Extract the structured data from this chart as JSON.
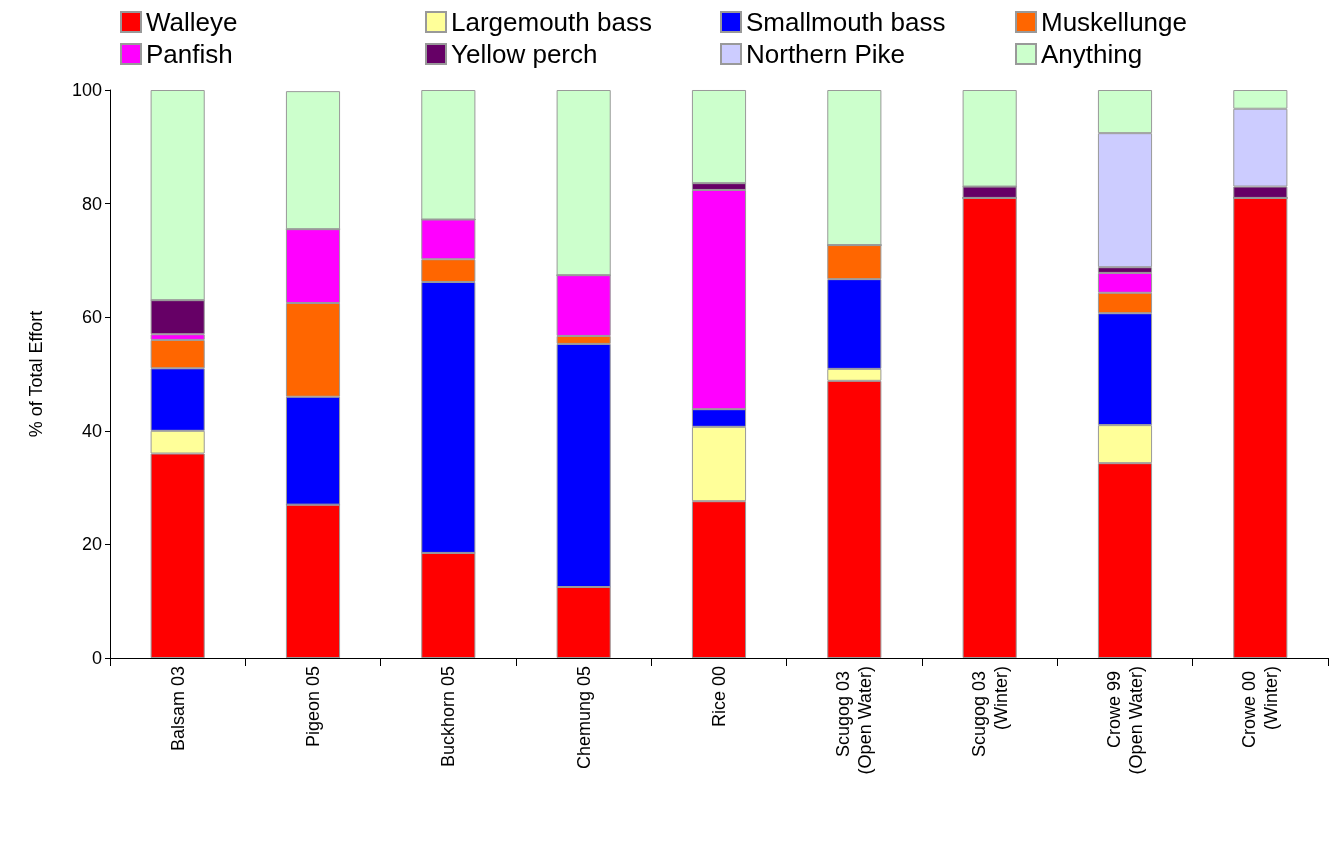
{
  "chart_data": {
    "type": "bar",
    "stacked": true,
    "ylabel": "% of Total Effort",
    "ylim": [
      0,
      100
    ],
    "yticks": [
      0,
      20,
      40,
      60,
      80,
      100
    ],
    "grid": false,
    "legend": "top",
    "categories": [
      "Balsam 03",
      "Pigeon 05",
      "Buckhorn 05",
      "Chemung 05",
      "Rice 00",
      "Scugog 03 (Open Water)",
      "Scugog 03 (Winter)",
      "Crowe 99 (Open Water)",
      "Crowe 00 (Winter)"
    ],
    "series": [
      {
        "name": "Walleye",
        "color": "#ff0000",
        "values": [
          36,
          27,
          18.5,
          12.5,
          27.6,
          48.8,
          81,
          34.3,
          81
        ]
      },
      {
        "name": "Largemouth bass",
        "color": "#ffff99",
        "values": [
          4,
          0,
          0,
          0,
          13.1,
          2.1,
          0,
          6.7,
          0
        ]
      },
      {
        "name": "Smallmouth bass",
        "color": "#0000ff",
        "values": [
          11,
          19,
          47.7,
          42.8,
          3.1,
          15.8,
          0,
          19.7,
          0
        ]
      },
      {
        "name": "Muskellunge",
        "color": "#ff6600",
        "values": [
          5,
          16.5,
          4,
          1.4,
          0,
          6,
          0,
          3.6,
          0
        ]
      },
      {
        "name": "Panfish",
        "color": "#ff00ff",
        "values": [
          1,
          13,
          7,
          10.7,
          38.6,
          0,
          0,
          3.5,
          0
        ]
      },
      {
        "name": "Yellow perch",
        "color": "#660066",
        "values": [
          6,
          0,
          0,
          0,
          1.2,
          0,
          2,
          1,
          2
        ]
      },
      {
        "name": "Northern Pike",
        "color": "#ccccff",
        "values": [
          0,
          0,
          0,
          0,
          0,
          0,
          0,
          23.6,
          13.7
        ]
      },
      {
        "name": "Anything",
        "color": "#ccffcc",
        "values": [
          37,
          24.3,
          22.8,
          32.6,
          16.4,
          27.3,
          17,
          7.6,
          3.3
        ]
      }
    ]
  }
}
